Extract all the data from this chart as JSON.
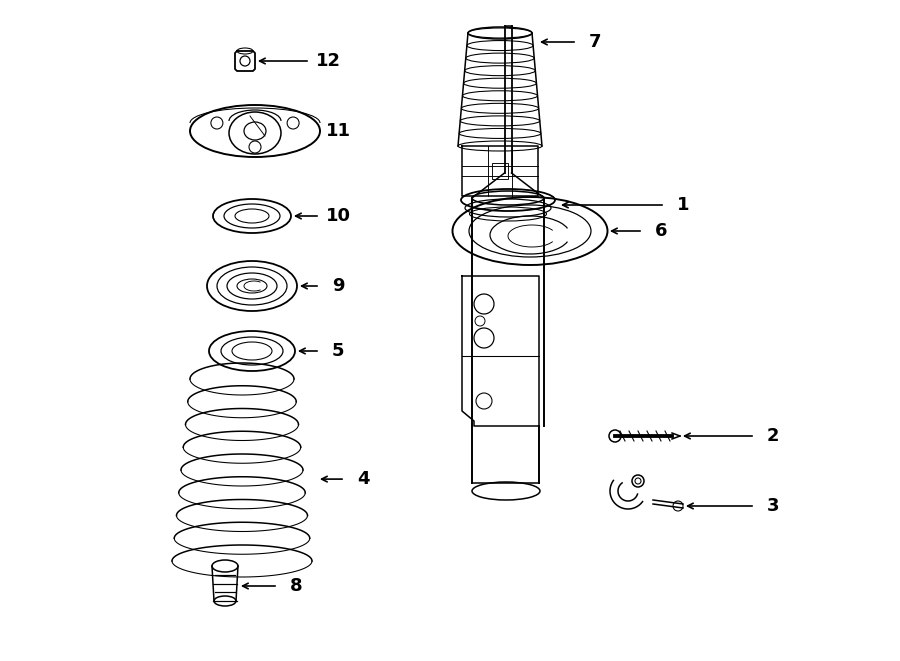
{
  "bg_color": "#ffffff",
  "lc": "#000000",
  "lw": 1.1,
  "figsize": [
    9.0,
    6.61
  ],
  "dpi": 100
}
